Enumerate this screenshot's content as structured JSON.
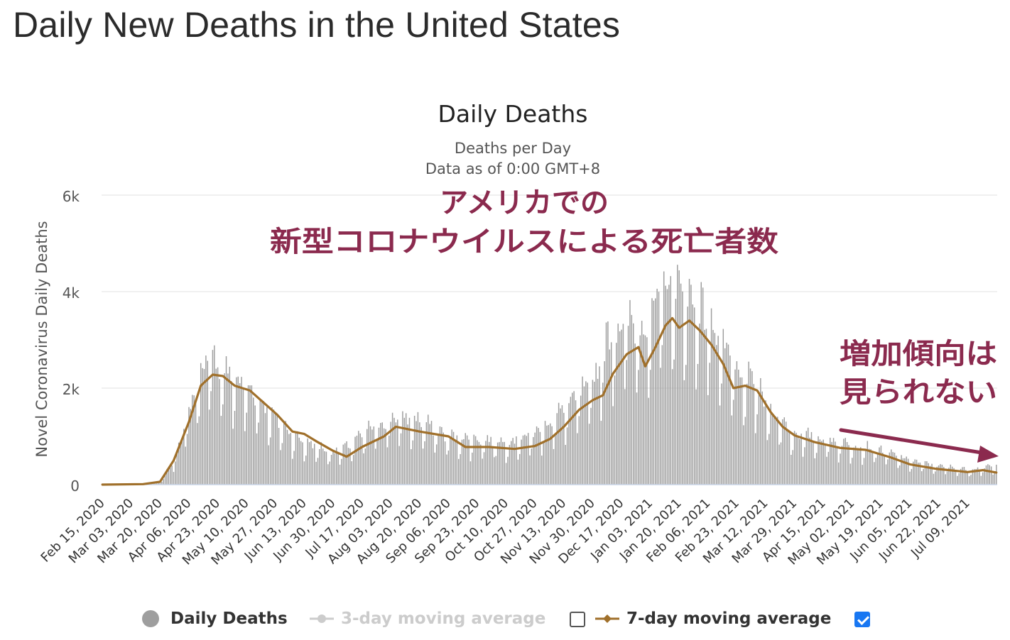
{
  "page": {
    "title": "Daily New Deaths in the United States"
  },
  "annotations": {
    "main_line1": "アメリカでの",
    "main_line2": "新型コロナウイルスによる死亡者数",
    "side_line1": "増加傾向は",
    "side_line2": "見られない",
    "color": "#8b2a4e"
  },
  "legend": {
    "daily_label": "Daily Deaths",
    "ma3_label": "3-day moving average",
    "ma3_checked": false,
    "ma7_label": "7-day moving average",
    "ma7_checked": true
  },
  "chart_data": {
    "type": "bar",
    "title": "Daily Deaths",
    "subtitle": [
      "Deaths per Day",
      "Data as of 0:00 GMT+8"
    ],
    "xlabel": "",
    "ylabel": "Novel Coronavirus Daily Deaths",
    "ylim": [
      0,
      6000
    ],
    "yticks": [
      0,
      2000,
      4000,
      6000
    ],
    "ytick_labels": [
      "0",
      "2k",
      "4k",
      "6k"
    ],
    "grid": true,
    "legend_position": "bottom",
    "x_start": "2020-02-15",
    "x_end": "2021-07-26",
    "xtick_labels": [
      "Feb 15, 2020",
      "Mar 03, 2020",
      "Mar 20, 2020",
      "Apr 06, 2020",
      "Apr 23, 2020",
      "May 10, 2020",
      "May 27, 2020",
      "Jun 13, 2020",
      "Jun 30, 2020",
      "Jul 17, 2020",
      "Aug 03, 2020",
      "Aug 20, 2020",
      "Sep 06, 2020",
      "Sep 23, 2020",
      "Oct 10, 2020",
      "Oct 27, 2020",
      "Nov 13, 2020",
      "Nov 30, 2020",
      "Dec 17, 2020",
      "Jan 03, 2021",
      "Jan 20, 2021",
      "Feb 06, 2021",
      "Feb 23, 2021",
      "Mar 12, 2021",
      "Mar 29, 2021",
      "Apr 15, 2021",
      "May 02, 2021",
      "May 19, 2021",
      "Jun 05, 2021",
      "Jun 22, 2021",
      "Jul 09, 2021"
    ],
    "series": [
      {
        "name": "Daily Deaths",
        "kind": "bar",
        "color": "#9e9e9e",
        "values_start": "2020-02-15",
        "anchors": [
          [
            "2020-02-15",
            0
          ],
          [
            "2020-03-10",
            5
          ],
          [
            "2020-03-20",
            40
          ],
          [
            "2020-03-28",
            450
          ],
          [
            "2020-04-06",
            1350
          ],
          [
            "2020-04-15",
            2300
          ],
          [
            "2020-04-22",
            2300
          ],
          [
            "2020-05-01",
            2000
          ],
          [
            "2020-05-15",
            1700
          ],
          [
            "2020-05-28",
            1200
          ],
          [
            "2020-06-10",
            850
          ],
          [
            "2020-06-30",
            600
          ],
          [
            "2020-07-08",
            700
          ],
          [
            "2020-07-22",
            1050
          ],
          [
            "2020-08-05",
            1250
          ],
          [
            "2020-08-20",
            1200
          ],
          [
            "2020-09-06",
            900
          ],
          [
            "2020-09-23",
            850
          ],
          [
            "2020-10-10",
            800
          ],
          [
            "2020-10-27",
            950
          ],
          [
            "2020-11-13",
            1400
          ],
          [
            "2020-11-30",
            1900
          ],
          [
            "2020-12-10",
            2800
          ],
          [
            "2020-12-20",
            3000
          ],
          [
            "2021-01-03",
            3000
          ],
          [
            "2021-01-12",
            3800
          ],
          [
            "2021-01-20",
            3600
          ],
          [
            "2021-02-01",
            3300
          ],
          [
            "2021-02-12",
            2800
          ],
          [
            "2021-02-23",
            2000
          ],
          [
            "2021-03-05",
            1900
          ],
          [
            "2021-03-12",
            1500
          ],
          [
            "2021-03-29",
            950
          ],
          [
            "2021-04-15",
            850
          ],
          [
            "2021-05-02",
            750
          ],
          [
            "2021-05-19",
            650
          ],
          [
            "2021-06-05",
            450
          ],
          [
            "2021-06-22",
            350
          ],
          [
            "2021-07-09",
            280
          ],
          [
            "2021-07-26",
            350
          ]
        ]
      },
      {
        "name": "3-day moving average",
        "kind": "line",
        "color": "#cccccc",
        "visible": false
      },
      {
        "name": "7-day moving average",
        "kind": "line",
        "color": "#a0702b",
        "visible": true,
        "points": [
          [
            "2020-02-15",
            0
          ],
          [
            "2020-03-10",
            10
          ],
          [
            "2020-03-20",
            60
          ],
          [
            "2020-03-28",
            500
          ],
          [
            "2020-04-06",
            1300
          ],
          [
            "2020-04-13",
            2050
          ],
          [
            "2020-04-20",
            2280
          ],
          [
            "2020-04-26",
            2250
          ],
          [
            "2020-05-03",
            2050
          ],
          [
            "2020-05-12",
            1950
          ],
          [
            "2020-05-20",
            1700
          ],
          [
            "2020-05-28",
            1450
          ],
          [
            "2020-06-06",
            1100
          ],
          [
            "2020-06-13",
            1050
          ],
          [
            "2020-06-20",
            900
          ],
          [
            "2020-06-30",
            700
          ],
          [
            "2020-07-08",
            580
          ],
          [
            "2020-07-17",
            780
          ],
          [
            "2020-07-30",
            1000
          ],
          [
            "2020-08-06",
            1200
          ],
          [
            "2020-08-20",
            1100
          ],
          [
            "2020-09-06",
            1000
          ],
          [
            "2020-09-16",
            780
          ],
          [
            "2020-09-30",
            780
          ],
          [
            "2020-10-15",
            740
          ],
          [
            "2020-10-27",
            800
          ],
          [
            "2020-11-05",
            950
          ],
          [
            "2020-11-13",
            1200
          ],
          [
            "2020-11-22",
            1550
          ],
          [
            "2020-11-30",
            1750
          ],
          [
            "2020-12-06",
            1850
          ],
          [
            "2020-12-12",
            2300
          ],
          [
            "2020-12-20",
            2700
          ],
          [
            "2020-12-27",
            2850
          ],
          [
            "2020-12-31",
            2450
          ],
          [
            "2021-01-06",
            2850
          ],
          [
            "2021-01-12",
            3300
          ],
          [
            "2021-01-16",
            3450
          ],
          [
            "2021-01-20",
            3250
          ],
          [
            "2021-01-26",
            3400
          ],
          [
            "2021-02-01",
            3200
          ],
          [
            "2021-02-08",
            2900
          ],
          [
            "2021-02-15",
            2500
          ],
          [
            "2021-02-21",
            2000
          ],
          [
            "2021-02-28",
            2050
          ],
          [
            "2021-03-07",
            1950
          ],
          [
            "2021-03-15",
            1500
          ],
          [
            "2021-03-22",
            1200
          ],
          [
            "2021-03-29",
            1020
          ],
          [
            "2021-04-10",
            880
          ],
          [
            "2021-04-25",
            760
          ],
          [
            "2021-05-10",
            720
          ],
          [
            "2021-05-25",
            560
          ],
          [
            "2021-06-05",
            420
          ],
          [
            "2021-06-20",
            330
          ],
          [
            "2021-07-01",
            290
          ],
          [
            "2021-07-09",
            260
          ],
          [
            "2021-07-18",
            300
          ],
          [
            "2021-07-26",
            250
          ]
        ]
      }
    ]
  }
}
